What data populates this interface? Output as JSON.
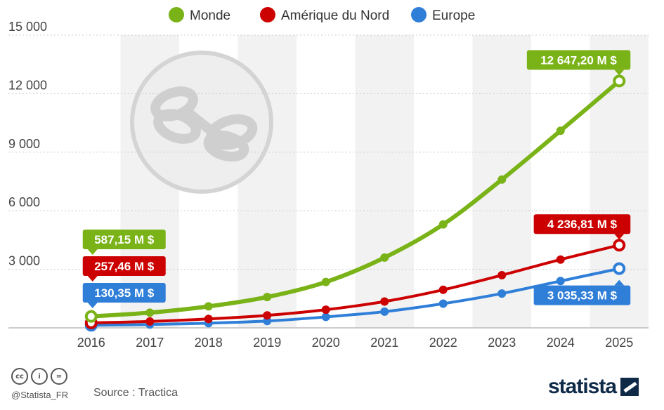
{
  "chart_data": {
    "type": "line",
    "x": [
      "2016",
      "2017",
      "2018",
      "2019",
      "2020",
      "2021",
      "2022",
      "2023",
      "2024",
      "2025"
    ],
    "series": [
      {
        "name": "Monde",
        "color": "#7ab317",
        "values": [
          587.15,
          780,
          1100,
          1580,
          2350,
          3600,
          5300,
          7600,
          10100,
          12647.2
        ]
      },
      {
        "name": "Amérique du Nord",
        "color": "#cc0000",
        "values": [
          257.46,
          330,
          460,
          640,
          930,
          1350,
          1950,
          2700,
          3500,
          4236.81
        ]
      },
      {
        "name": "Europe",
        "color": "#2f7ed8",
        "values": [
          130.35,
          170,
          240,
          350,
          560,
          830,
          1240,
          1760,
          2400,
          3035.33
        ]
      }
    ],
    "ylim": [
      0,
      15000
    ],
    "yticks": [
      0,
      3000,
      6000,
      9000,
      12000,
      15000
    ],
    "ytick_labels": [
      "",
      "3 000",
      "6 000",
      "9 000",
      "12 000",
      "15 000"
    ],
    "grid": true,
    "legend": "top-center",
    "callouts": [
      {
        "series": 0,
        "index": 0,
        "text": "587,15 M $",
        "side": "above"
      },
      {
        "series": 1,
        "index": 0,
        "text": "257,46 M $",
        "side": "above"
      },
      {
        "series": 2,
        "index": 0,
        "text": "130,35 M $",
        "side": "above"
      },
      {
        "series": 0,
        "index": 9,
        "text": "12 647,20 M $",
        "side": "above"
      },
      {
        "series": 1,
        "index": 9,
        "text": "4 236,81 M $",
        "side": "above"
      },
      {
        "series": 2,
        "index": 9,
        "text": "3 035,33 M $",
        "side": "below"
      }
    ]
  },
  "footer": {
    "handle": "@Statista_FR",
    "source": "Source : Tractica",
    "brand": "statista",
    "license_icons": [
      "cc-icon",
      "attribution-icon",
      "no-derivatives-icon"
    ],
    "license_glyphs": [
      "cc",
      "i",
      "="
    ]
  }
}
